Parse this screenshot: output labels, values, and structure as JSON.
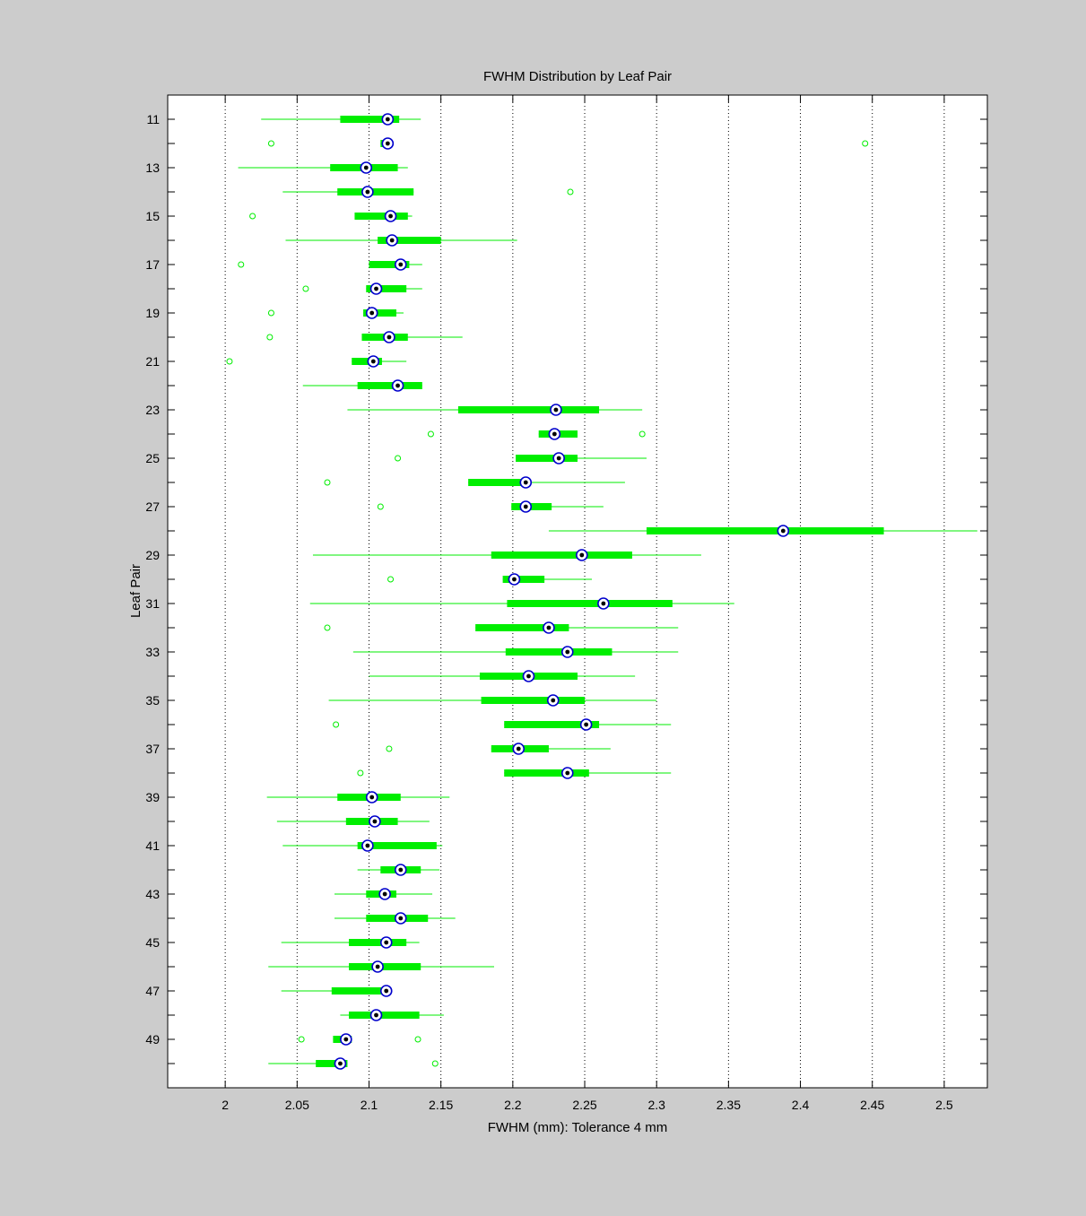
{
  "chart_data": {
    "type": "boxplot",
    "orientation": "horizontal",
    "title": "FWHM Distribution by Leaf Pair",
    "xlabel": "FWHM (mm): Tolerance 4 mm",
    "ylabel": "Leaf Pair",
    "xlim": [
      1.96,
      2.53
    ],
    "xticks": [
      2,
      2.05,
      2.1,
      2.15,
      2.2,
      2.25,
      2.3,
      2.35,
      2.4,
      2.45,
      2.5
    ],
    "xtick_labels": [
      "2",
      "2.05",
      "2.1",
      "2.15",
      "2.2",
      "2.25",
      "2.3",
      "2.35",
      "2.4",
      "2.45",
      "2.5"
    ],
    "yticks": [
      11,
      13,
      15,
      17,
      19,
      21,
      23,
      25,
      27,
      29,
      31,
      33,
      35,
      37,
      39,
      41,
      43,
      45,
      47,
      49
    ],
    "ytick_labels": [
      "11",
      "13",
      "15",
      "17",
      "19",
      "21",
      "23",
      "25",
      "27",
      "29",
      "31",
      "33",
      "35",
      "37",
      "39",
      "41",
      "43",
      "45",
      "47",
      "49"
    ],
    "ylim": [
      10,
      51
    ],
    "y_reversed": true,
    "grid": "vertical-dotted",
    "colors": {
      "box": "#00ee00",
      "median_ring": "#0000cc",
      "median_dot": "#000000"
    },
    "boxes": [
      {
        "pair": 11,
        "whisker_low": 2.025,
        "q1": 2.08,
        "median": 2.113,
        "q3": 2.121,
        "whisker_high": 2.136,
        "outliers": []
      },
      {
        "pair": 12,
        "whisker_low": 2.108,
        "q1": 2.108,
        "median": 2.113,
        "q3": 2.115,
        "whisker_high": 2.115,
        "outliers": [
          2.032,
          2.445
        ]
      },
      {
        "pair": 13,
        "whisker_low": 2.009,
        "q1": 2.073,
        "median": 2.098,
        "q3": 2.12,
        "whisker_high": 2.127,
        "outliers": []
      },
      {
        "pair": 14,
        "whisker_low": 2.04,
        "q1": 2.078,
        "median": 2.099,
        "q3": 2.131,
        "whisker_high": 2.131,
        "outliers": [
          2.24
        ]
      },
      {
        "pair": 15,
        "whisker_low": 2.09,
        "q1": 2.09,
        "median": 2.115,
        "q3": 2.127,
        "whisker_high": 2.13,
        "outliers": [
          2.019
        ]
      },
      {
        "pair": 16,
        "whisker_low": 2.042,
        "q1": 2.106,
        "median": 2.116,
        "q3": 2.15,
        "whisker_high": 2.203,
        "outliers": []
      },
      {
        "pair": 17,
        "whisker_low": 2.1,
        "q1": 2.1,
        "median": 2.122,
        "q3": 2.128,
        "whisker_high": 2.137,
        "outliers": [
          2.011
        ]
      },
      {
        "pair": 18,
        "whisker_low": 2.098,
        "q1": 2.098,
        "median": 2.105,
        "q3": 2.126,
        "whisker_high": 2.137,
        "outliers": [
          2.056
        ]
      },
      {
        "pair": 19,
        "whisker_low": 2.096,
        "q1": 2.096,
        "median": 2.102,
        "q3": 2.119,
        "whisker_high": 2.124,
        "outliers": [
          2.032
        ]
      },
      {
        "pair": 20,
        "whisker_low": 2.095,
        "q1": 2.095,
        "median": 2.114,
        "q3": 2.127,
        "whisker_high": 2.165,
        "outliers": [
          2.031
        ]
      },
      {
        "pair": 21,
        "whisker_low": 2.088,
        "q1": 2.088,
        "median": 2.103,
        "q3": 2.109,
        "whisker_high": 2.126,
        "outliers": [
          2.003
        ]
      },
      {
        "pair": 22,
        "whisker_low": 2.054,
        "q1": 2.092,
        "median": 2.12,
        "q3": 2.137,
        "whisker_high": 2.137,
        "outliers": []
      },
      {
        "pair": 23,
        "whisker_low": 2.085,
        "q1": 2.162,
        "median": 2.23,
        "q3": 2.26,
        "whisker_high": 2.29,
        "outliers": []
      },
      {
        "pair": 24,
        "whisker_low": 2.218,
        "q1": 2.218,
        "median": 2.229,
        "q3": 2.245,
        "whisker_high": 2.245,
        "outliers": [
          2.143,
          2.29
        ]
      },
      {
        "pair": 25,
        "whisker_low": 2.202,
        "q1": 2.202,
        "median": 2.232,
        "q3": 2.245,
        "whisker_high": 2.293,
        "outliers": [
          2.12
        ]
      },
      {
        "pair": 26,
        "whisker_low": 2.169,
        "q1": 2.169,
        "median": 2.209,
        "q3": 2.211,
        "whisker_high": 2.278,
        "outliers": [
          2.071
        ]
      },
      {
        "pair": 27,
        "whisker_low": 2.199,
        "q1": 2.199,
        "median": 2.209,
        "q3": 2.227,
        "whisker_high": 2.263,
        "outliers": [
          2.108
        ]
      },
      {
        "pair": 28,
        "whisker_low": 2.225,
        "q1": 2.293,
        "median": 2.388,
        "q3": 2.458,
        "whisker_high": 2.523,
        "outliers": []
      },
      {
        "pair": 29,
        "whisker_low": 2.061,
        "q1": 2.185,
        "median": 2.248,
        "q3": 2.283,
        "whisker_high": 2.331,
        "outliers": []
      },
      {
        "pair": 30,
        "whisker_low": 2.193,
        "q1": 2.193,
        "median": 2.201,
        "q3": 2.222,
        "whisker_high": 2.255,
        "outliers": [
          2.115
        ]
      },
      {
        "pair": 31,
        "whisker_low": 2.059,
        "q1": 2.196,
        "median": 2.263,
        "q3": 2.311,
        "whisker_high": 2.354,
        "outliers": []
      },
      {
        "pair": 32,
        "whisker_low": 2.174,
        "q1": 2.174,
        "median": 2.225,
        "q3": 2.239,
        "whisker_high": 2.315,
        "outliers": [
          2.071
        ]
      },
      {
        "pair": 33,
        "whisker_low": 2.089,
        "q1": 2.195,
        "median": 2.238,
        "q3": 2.269,
        "whisker_high": 2.315,
        "outliers": []
      },
      {
        "pair": 34,
        "whisker_low": 2.1,
        "q1": 2.177,
        "median": 2.211,
        "q3": 2.245,
        "whisker_high": 2.285,
        "outliers": []
      },
      {
        "pair": 35,
        "whisker_low": 2.072,
        "q1": 2.178,
        "median": 2.228,
        "q3": 2.25,
        "whisker_high": 2.3,
        "outliers": []
      },
      {
        "pair": 36,
        "whisker_low": 2.194,
        "q1": 2.194,
        "median": 2.251,
        "q3": 2.26,
        "whisker_high": 2.31,
        "outliers": [
          2.077
        ]
      },
      {
        "pair": 37,
        "whisker_low": 2.185,
        "q1": 2.185,
        "median": 2.204,
        "q3": 2.225,
        "whisker_high": 2.268,
        "outliers": [
          2.114
        ]
      },
      {
        "pair": 38,
        "whisker_low": 2.194,
        "q1": 2.194,
        "median": 2.238,
        "q3": 2.253,
        "whisker_high": 2.31,
        "outliers": [
          2.094
        ]
      },
      {
        "pair": 39,
        "whisker_low": 2.029,
        "q1": 2.078,
        "median": 2.102,
        "q3": 2.122,
        "whisker_high": 2.156,
        "outliers": []
      },
      {
        "pair": 40,
        "whisker_low": 2.036,
        "q1": 2.084,
        "median": 2.104,
        "q3": 2.12,
        "whisker_high": 2.142,
        "outliers": []
      },
      {
        "pair": 41,
        "whisker_low": 2.04,
        "q1": 2.092,
        "median": 2.099,
        "q3": 2.147,
        "whisker_high": 2.151,
        "outliers": []
      },
      {
        "pair": 42,
        "whisker_low": 2.092,
        "q1": 2.108,
        "median": 2.122,
        "q3": 2.136,
        "whisker_high": 2.149,
        "outliers": []
      },
      {
        "pair": 43,
        "whisker_low": 2.076,
        "q1": 2.098,
        "median": 2.111,
        "q3": 2.119,
        "whisker_high": 2.144,
        "outliers": []
      },
      {
        "pair": 44,
        "whisker_low": 2.076,
        "q1": 2.098,
        "median": 2.122,
        "q3": 2.141,
        "whisker_high": 2.16,
        "outliers": []
      },
      {
        "pair": 45,
        "whisker_low": 2.039,
        "q1": 2.086,
        "median": 2.112,
        "q3": 2.126,
        "whisker_high": 2.135,
        "outliers": []
      },
      {
        "pair": 46,
        "whisker_low": 2.03,
        "q1": 2.086,
        "median": 2.106,
        "q3": 2.136,
        "whisker_high": 2.187,
        "outliers": []
      },
      {
        "pair": 47,
        "whisker_low": 2.039,
        "q1": 2.074,
        "median": 2.112,
        "q3": 2.112,
        "whisker_high": 2.112,
        "outliers": []
      },
      {
        "pair": 48,
        "whisker_low": 2.08,
        "q1": 2.086,
        "median": 2.105,
        "q3": 2.135,
        "whisker_high": 2.152,
        "outliers": []
      },
      {
        "pair": 49,
        "whisker_low": 2.075,
        "q1": 2.075,
        "median": 2.084,
        "q3": 2.088,
        "whisker_high": 2.088,
        "outliers": [
          2.053,
          2.134
        ]
      },
      {
        "pair": 50,
        "whisker_low": 2.03,
        "q1": 2.063,
        "median": 2.08,
        "q3": 2.085,
        "whisker_high": 2.085,
        "outliers": [
          2.146
        ]
      }
    ]
  }
}
